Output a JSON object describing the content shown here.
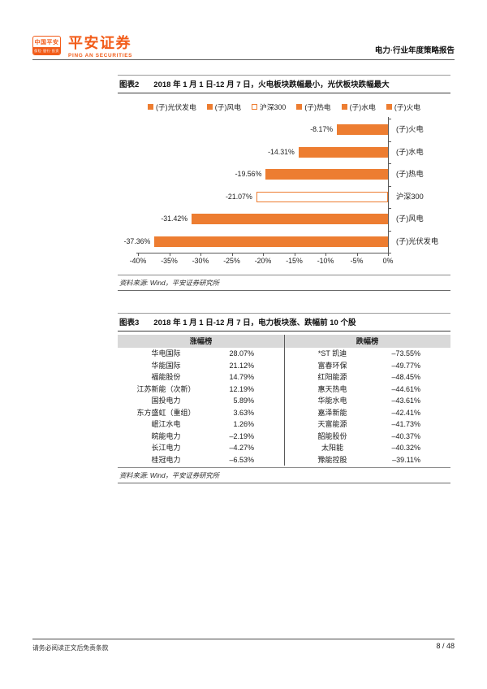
{
  "brand": {
    "badge_title": "中国平安",
    "badge_tagline": "保险·银行·投资",
    "name_cn": "平安证券",
    "name_en": "PING AN SECURITIES"
  },
  "header": {
    "report_type": "电力·行业年度策略报告"
  },
  "colors": {
    "accent_orange": "#ED7D31",
    "logo_orange": "#F25C19",
    "table_header_bg": "#D9D9D9"
  },
  "figure2": {
    "label": "图表2",
    "title": "2018 年 1 月 1 日-12 月 7 日，火电板块跌幅最小，光伏板块跌幅最大",
    "source": "资料来源: Wind，平安证券研究所"
  },
  "chart_data": {
    "type": "bar",
    "orientation": "horizontal",
    "title": "2018 年 1 月 1 日-12 月 7 日，火电板块跌幅最小，光伏板块跌幅最大",
    "categories": [
      "(子)火电",
      "(子)水电",
      "(子)热电",
      "沪深300",
      "(子)风电",
      "(子)光伏发电"
    ],
    "values": [
      -8.17,
      -14.31,
      -19.56,
      -21.07,
      -31.42,
      -37.36
    ],
    "data_labels": [
      "-8.17%",
      "-14.31%",
      "-19.56%",
      "-21.07%",
      "-31.42%",
      "-37.36%"
    ],
    "bar_styles": [
      "filled",
      "filled",
      "filled",
      "outlined",
      "filled",
      "filled"
    ],
    "legend": [
      {
        "label": "(子)光伏发电",
        "style": "filled"
      },
      {
        "label": "(子)风电",
        "style": "filled"
      },
      {
        "label": "沪深300",
        "style": "outlined"
      },
      {
        "label": "(子)热电",
        "style": "filled"
      },
      {
        "label": "(子)水电",
        "style": "filled"
      },
      {
        "label": "(子)火电",
        "style": "filled"
      }
    ],
    "x_tick_labels": [
      "-40%",
      "-35%",
      "-30%",
      "-25%",
      "-20%",
      "-15%",
      "-10%",
      "-5%",
      "0%"
    ],
    "xlim": [
      -40,
      0
    ],
    "bar_color": "#ED7D31",
    "legend_position": "top",
    "grid": false
  },
  "figure3": {
    "label": "图表3",
    "title": "2018 年 1 月 1 日-12 月 7 日，电力板块涨、跌幅前 10 个股",
    "source": "资料来源: Wind，平安证券研究所",
    "col_headers": [
      "涨幅榜",
      "跌幅榜"
    ],
    "gainers": [
      {
        "name": "华电国际",
        "value": "28.07%"
      },
      {
        "name": "华能国际",
        "value": "21.12%"
      },
      {
        "name": "福能股份",
        "value": "14.79%"
      },
      {
        "name": "江苏新能（次新）",
        "value": "12.19%"
      },
      {
        "name": "国投电力",
        "value": "5.89%"
      },
      {
        "name": "东方盛虹（重组）",
        "value": "3.63%"
      },
      {
        "name": "岷江水电",
        "value": "1.26%"
      },
      {
        "name": "皖能电力",
        "value": "–2.19%"
      },
      {
        "name": "长江电力",
        "value": "–4.27%"
      },
      {
        "name": "桂冠电力",
        "value": "–6.53%"
      }
    ],
    "losers": [
      {
        "name": "*ST 凯迪",
        "value": "–73.55%"
      },
      {
        "name": "富春环保",
        "value": "–49.77%"
      },
      {
        "name": "红阳能源",
        "value": "–48.45%"
      },
      {
        "name": "惠天热电",
        "value": "–44.61%"
      },
      {
        "name": "华能水电",
        "value": "–43.61%"
      },
      {
        "name": "嘉泽新能",
        "value": "–42.41%"
      },
      {
        "name": "天富能源",
        "value": "–41.73%"
      },
      {
        "name": "韶能股份",
        "value": "–40.37%"
      },
      {
        "name": "太阳能",
        "value": "–40.32%"
      },
      {
        "name": "豫能控股",
        "value": "–39.11%"
      }
    ]
  },
  "footer": {
    "disclaimer": "请务必阅读正文后免责条款",
    "page": "8 / 48"
  }
}
